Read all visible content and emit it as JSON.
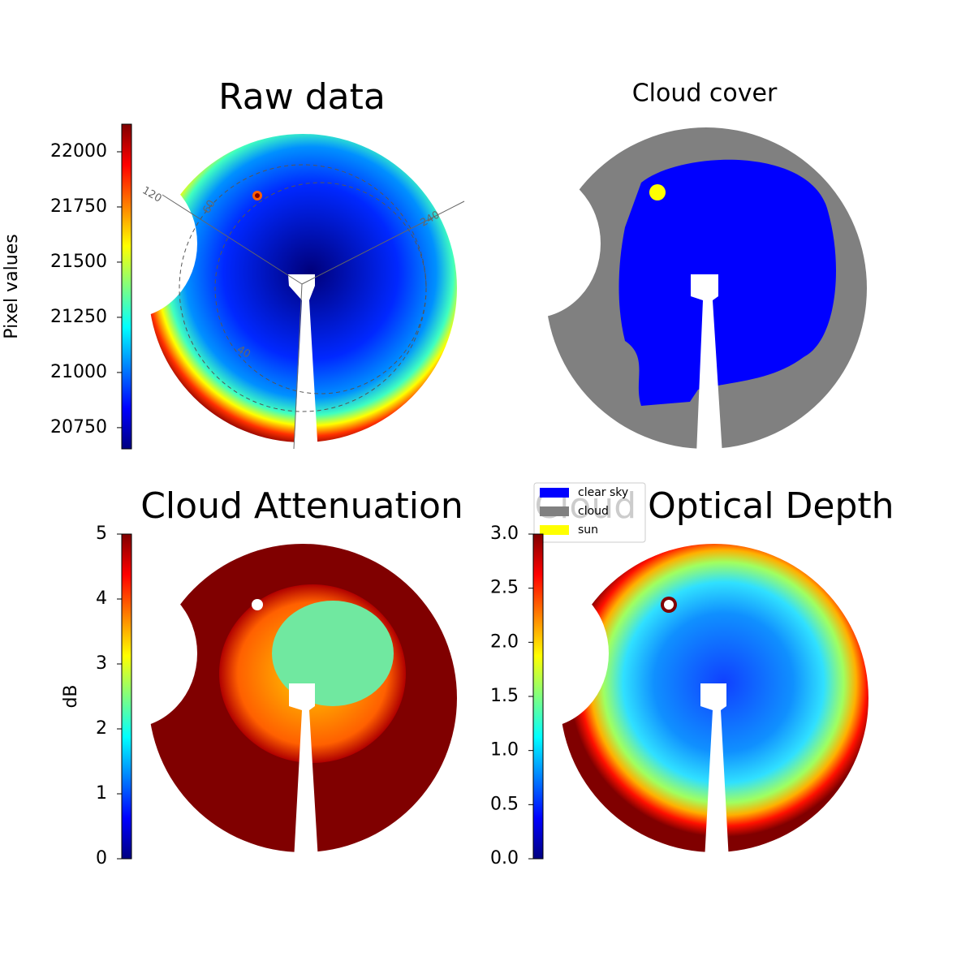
{
  "chart_data": [
    {
      "type": "image",
      "title": "Raw data",
      "cmap": "jet",
      "colorbar": {
        "label": "Pixel values",
        "lim": [
          20654,
          22125
        ],
        "ticks": [
          20750,
          21000,
          21250,
          21500,
          21750,
          22000
        ]
      },
      "annotations": [
        "120",
        "60",
        "240",
        "40"
      ]
    },
    {
      "type": "image",
      "title": "Cloud cover",
      "legend": [
        {
          "name": "clear sky",
          "color": "#0000ff"
        },
        {
          "name": "cloud",
          "color": "#808080"
        },
        {
          "name": "sun",
          "color": "#ffff00"
        }
      ]
    },
    {
      "type": "image",
      "title": "Cloud Attenuation",
      "cmap": "jet",
      "colorbar": {
        "label": "dB",
        "lim": [
          0,
          5
        ],
        "ticks": [
          0,
          1,
          2,
          3,
          4,
          5
        ]
      }
    },
    {
      "type": "image",
      "title": "Cloud Optical Depth",
      "cmap": "jet",
      "colorbar": {
        "lim": [
          0,
          3
        ],
        "ticks": [
          {
            "value": 0,
            "label": "0.0"
          },
          {
            "value": 0.5,
            "label": "0.5"
          },
          {
            "value": 1,
            "label": "1.0"
          },
          {
            "value": 1.5,
            "label": "1.5"
          },
          {
            "value": 2,
            "label": "2.0"
          },
          {
            "value": 2.5,
            "label": "2.5"
          },
          {
            "value": 3,
            "label": "3.0"
          }
        ]
      }
    }
  ]
}
